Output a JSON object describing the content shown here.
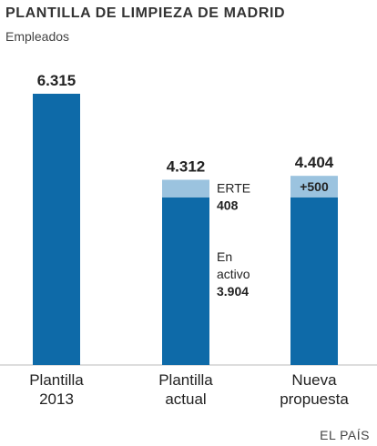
{
  "header": {
    "title": "PLANTILLA DE LIMPIEZA DE MADRID",
    "subtitle": "Empleados"
  },
  "source": "EL PAÍS",
  "colors": {
    "main_bar": "#0e6aa8",
    "secondary_bar": "#9bc3df",
    "plus_text": "#1b3b5a"
  },
  "chart_data": {
    "type": "bar",
    "title": "PLANTILLA DE LIMPIEZA DE MADRID",
    "subtitle": "Empleados",
    "ylim": [
      0,
      6315
    ],
    "grid": false,
    "stacked": true,
    "bars": [
      {
        "category": [
          "Plantilla",
          "2013"
        ],
        "total_label": "6.315",
        "segments": [
          {
            "value": 6315,
            "role": "main"
          }
        ]
      },
      {
        "category": [
          "Plantilla",
          "actual"
        ],
        "total_label": "4.312",
        "segments": [
          {
            "value": 3904,
            "role": "main"
          },
          {
            "value": 408,
            "role": "secondary"
          }
        ],
        "annotations": {
          "secondary": [
            "ERTE",
            "408"
          ],
          "main": [
            "En",
            "activo",
            "3.904"
          ]
        }
      },
      {
        "category": [
          "Nueva",
          "propuesta"
        ],
        "total_label": "4.404",
        "segments": [
          {
            "value": 3904,
            "role": "main"
          },
          {
            "value": 500,
            "role": "secondary",
            "label": "+500"
          }
        ]
      }
    ]
  }
}
